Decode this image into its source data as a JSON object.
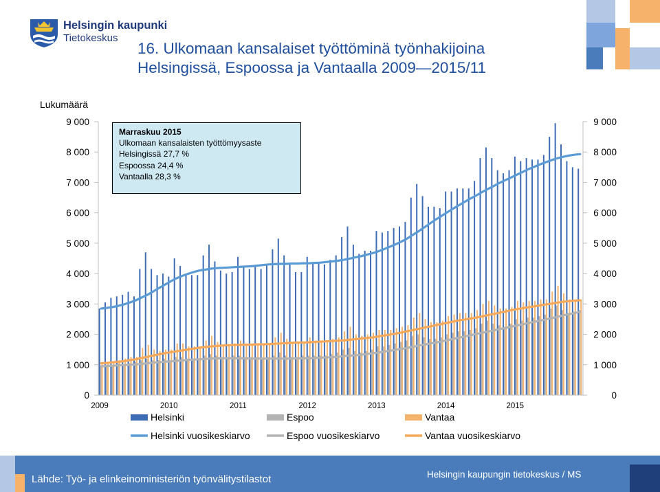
{
  "header": {
    "org_name": "Helsingin kaupunki",
    "org_unit": "Tietokeskus",
    "title_line1": "16. Ulkomaan kansalaiset työttöminä työnhakijoina",
    "title_line2": "Helsingissä, Espoossa ja Vantaalla 2009—2015/11",
    "logo_icon": "helsinki-crest-icon"
  },
  "annotation": {
    "heading": "Marraskuu 2015",
    "line1": "Ulkomaan kansalaisten työttömyysaste",
    "line2": "Helsingissä 27,7 %",
    "line3": "Espoossa 24,4 %",
    "line4": "Vantaalla 28,3 %"
  },
  "footer": {
    "source": "Lähde: Työ- ja elinkeinoministeriön työnvälitystilastot",
    "credit": "Helsingin kaupungin tietokeskus / MS"
  },
  "colors": {
    "helsinki": "#3d6cb5",
    "helsinki_avg": "#5b9bd5",
    "espoo": "#b3b3b3",
    "espoo_avg": "#b3b3b3",
    "vantaa": "#f5b46e",
    "vantaa_avg": "#f5a85a",
    "title": "#1f4e9c",
    "footer": "#4a7cbc",
    "annotation_bg": "#cfe9f3"
  },
  "chart_data": {
    "type": "bar",
    "ylabel": "Lukumäärä",
    "ylim": [
      0,
      9000
    ],
    "yticks": [
      "0",
      "1 000",
      "2 000",
      "3 000",
      "4 000",
      "5 000",
      "6 000",
      "7 000",
      "8 000",
      "9 000"
    ],
    "dual_y_axis": true,
    "grid": false,
    "x_tick_labels": [
      "2009",
      "2010",
      "2011",
      "2012",
      "2013",
      "2014",
      "2015"
    ],
    "period": "2009/01 - 2015/11 (monthly)",
    "legend_placement": "bottom",
    "series": [
      {
        "name": "Helsinki",
        "type": "bar",
        "values": [
          2850,
          3050,
          3200,
          3250,
          3300,
          3400,
          3250,
          4150,
          4700,
          4150,
          3950,
          4000,
          3900,
          4500,
          4250,
          3950,
          3950,
          3950,
          4600,
          4950,
          4400,
          4100,
          4000,
          4050,
          4550,
          4200,
          4150,
          4250,
          4150,
          4300,
          4800,
          5150,
          4600,
          4300,
          4050,
          4050,
          4550,
          4350,
          4350,
          4300,
          4450,
          4600,
          5200,
          5550,
          4950,
          4650,
          4750,
          4750,
          5400,
          5350,
          5400,
          5500,
          5550,
          5700,
          6500,
          6950,
          6550,
          6200,
          6200,
          6150,
          6700,
          6700,
          6800,
          6800,
          6800,
          7050,
          7800,
          8150,
          7800,
          7400,
          7300,
          7400,
          7850,
          7700,
          7800,
          7750,
          7750,
          7900,
          8500,
          8950,
          8250,
          7700,
          7500,
          7450
        ]
      },
      {
        "name": "Espoo",
        "type": "bar",
        "values": [
          950,
          1000,
          1000,
          1050,
          1000,
          1050,
          1100,
          1150,
          1200,
          1150,
          1150,
          1200,
          1150,
          1250,
          1250,
          1200,
          1200,
          1200,
          1300,
          1350,
          1300,
          1250,
          1250,
          1300,
          1300,
          1250,
          1250,
          1250,
          1200,
          1250,
          1300,
          1400,
          1300,
          1250,
          1250,
          1300,
          1300,
          1300,
          1300,
          1300,
          1350,
          1400,
          1500,
          1550,
          1450,
          1400,
          1450,
          1500,
          1600,
          1600,
          1650,
          1700,
          1750,
          1800,
          1950,
          2000,
          1900,
          1850,
          1850,
          1900,
          2000,
          2050,
          2100,
          2100,
          2150,
          2200,
          2350,
          2450,
          2350,
          2300,
          2250,
          2350,
          2500,
          2450,
          2550,
          2550,
          2600,
          2650,
          2850,
          2950,
          2800,
          2700,
          2750,
          2800
        ]
      },
      {
        "name": "Vantaa",
        "type": "bar",
        "values": [
          1050,
          1100,
          1100,
          1150,
          1200,
          1250,
          1250,
          1550,
          1650,
          1500,
          1450,
          1500,
          1500,
          1700,
          1700,
          1600,
          1600,
          1600,
          1800,
          1950,
          1750,
          1650,
          1650,
          1700,
          1800,
          1700,
          1700,
          1700,
          1650,
          1700,
          1900,
          2050,
          1850,
          1750,
          1700,
          1750,
          1900,
          1800,
          1800,
          1800,
          1850,
          1900,
          2100,
          2250,
          2000,
          1950,
          2000,
          2050,
          2150,
          2150,
          2150,
          2200,
          2250,
          2300,
          2550,
          2700,
          2500,
          2400,
          2400,
          2450,
          2600,
          2650,
          2700,
          2700,
          2700,
          2800,
          3000,
          3100,
          2950,
          2850,
          2850,
          2900,
          3100,
          3050,
          3100,
          3100,
          3150,
          3150,
          3400,
          3600,
          3350,
          3150,
          3150,
          3150
        ]
      },
      {
        "name": "Helsinki vuosikeskiarvo",
        "type": "line",
        "values": [
          2850,
          2870,
          2900,
          2940,
          2990,
          3050,
          3120,
          3210,
          3300,
          3410,
          3520,
          3630,
          3740,
          3840,
          3920,
          3990,
          4050,
          4100,
          4130,
          4160,
          4180,
          4190,
          4200,
          4210,
          4220,
          4230,
          4240,
          4260,
          4280,
          4300,
          4310,
          4320,
          4320,
          4330,
          4330,
          4340,
          4340,
          4350,
          4360,
          4380,
          4400,
          4420,
          4450,
          4490,
          4530,
          4570,
          4620,
          4670,
          4730,
          4800,
          4880,
          4960,
          5050,
          5150,
          5270,
          5390,
          5520,
          5650,
          5780,
          5900,
          6020,
          6140,
          6250,
          6360,
          6470,
          6570,
          6680,
          6780,
          6880,
          6980,
          7070,
          7160,
          7250,
          7340,
          7430,
          7510,
          7590,
          7660,
          7730,
          7790,
          7840,
          7880,
          7910,
          7930
        ]
      },
      {
        "name": "Espoo vuosikeskiarvo",
        "type": "line",
        "values": [
          950,
          960,
          970,
          980,
          990,
          1000,
          1010,
          1030,
          1050,
          1070,
          1080,
          1100,
          1110,
          1130,
          1140,
          1160,
          1170,
          1180,
          1190,
          1200,
          1210,
          1210,
          1210,
          1210,
          1210,
          1210,
          1200,
          1200,
          1200,
          1200,
          1200,
          1200,
          1200,
          1200,
          1210,
          1210,
          1210,
          1220,
          1230,
          1240,
          1250,
          1260,
          1280,
          1300,
          1310,
          1330,
          1350,
          1380,
          1400,
          1430,
          1460,
          1490,
          1520,
          1550,
          1590,
          1630,
          1660,
          1700,
          1730,
          1770,
          1810,
          1850,
          1890,
          1930,
          1970,
          2010,
          2050,
          2090,
          2130,
          2170,
          2210,
          2250,
          2290,
          2330,
          2370,
          2410,
          2450,
          2490,
          2530,
          2570,
          2620,
          2660,
          2700,
          2740
        ]
      },
      {
        "name": "Vantaa vuosikeskiarvo",
        "type": "line",
        "values": [
          1050,
          1060,
          1080,
          1100,
          1120,
          1150,
          1180,
          1220,
          1260,
          1300,
          1340,
          1380,
          1410,
          1440,
          1470,
          1500,
          1530,
          1560,
          1580,
          1600,
          1620,
          1630,
          1640,
          1650,
          1650,
          1660,
          1660,
          1670,
          1670,
          1680,
          1690,
          1700,
          1710,
          1720,
          1730,
          1730,
          1740,
          1750,
          1760,
          1770,
          1780,
          1790,
          1800,
          1820,
          1840,
          1860,
          1880,
          1900,
          1930,
          1960,
          1990,
          2020,
          2060,
          2100,
          2140,
          2180,
          2220,
          2260,
          2300,
          2340,
          2380,
          2420,
          2460,
          2490,
          2520,
          2550,
          2590,
          2630,
          2670,
          2710,
          2750,
          2790,
          2830,
          2860,
          2890,
          2920,
          2950,
          2980,
          3010,
          3040,
          3070,
          3090,
          3110,
          3120
        ]
      }
    ]
  }
}
